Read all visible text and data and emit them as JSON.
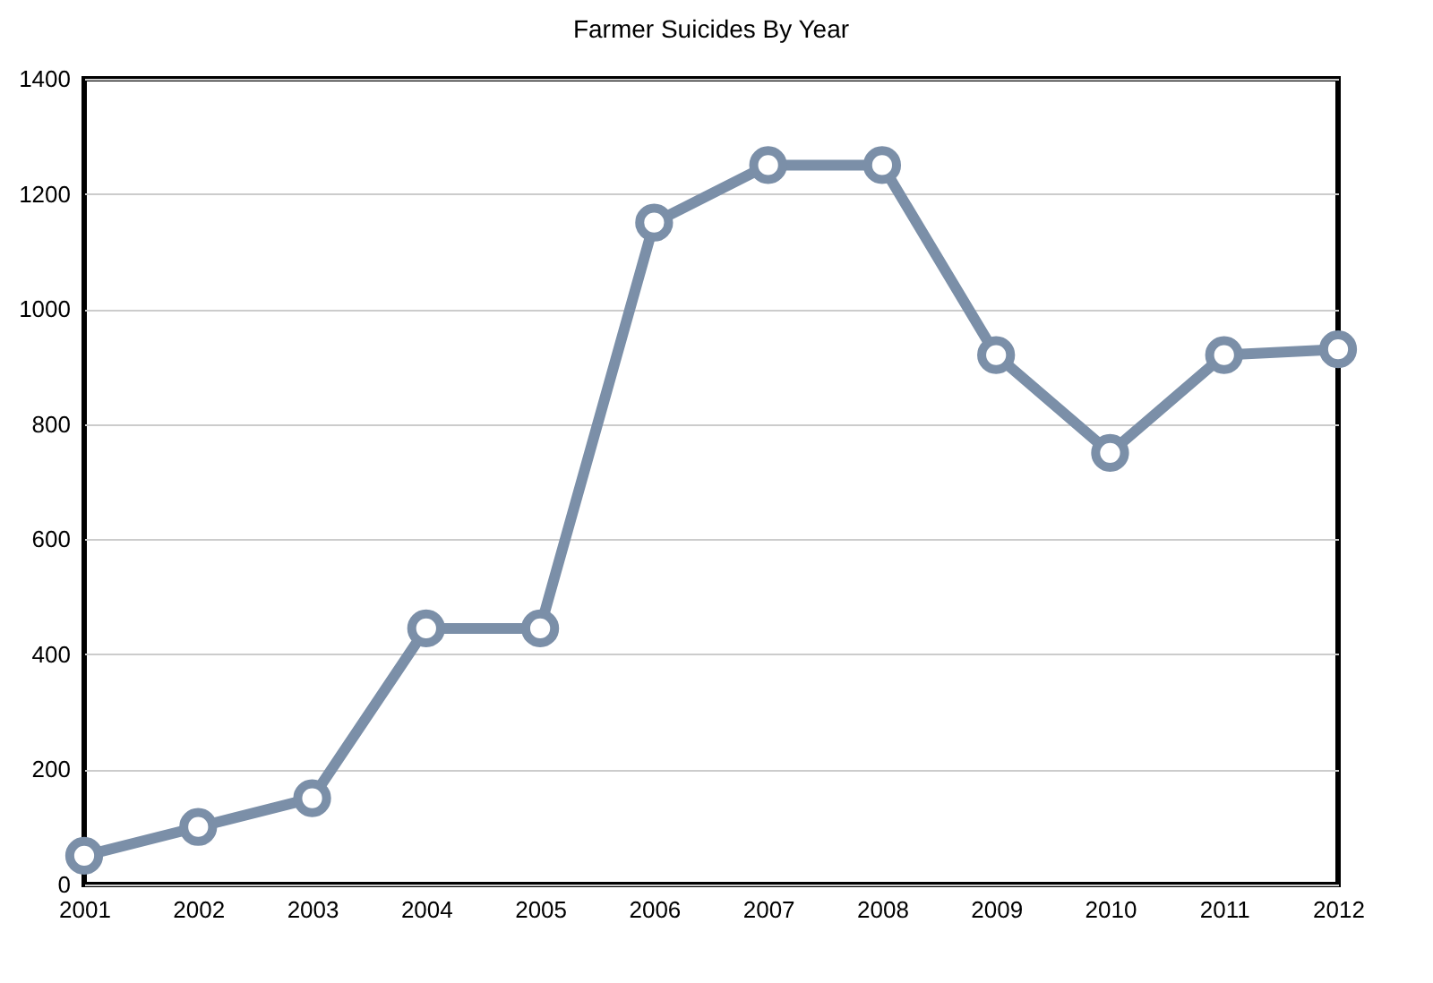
{
  "chart_data": {
    "type": "line",
    "title": "Farmer Suicides By Year",
    "categories": [
      "2001",
      "2002",
      "2003",
      "2004",
      "2005",
      "2006",
      "2007",
      "2008",
      "2009",
      "2010",
      "2011",
      "2012"
    ],
    "series": [
      {
        "color": "#7b8fa8",
        "values": [
          50,
          100,
          150,
          445,
          445,
          1150,
          1250,
          1250,
          920,
          750,
          920,
          930
        ]
      }
    ],
    "ylim": [
      0,
      1400
    ],
    "yticks": [
      0,
      200,
      400,
      600,
      800,
      1000,
      1200,
      1400
    ],
    "grid": "y",
    "marker": "circle",
    "line_style": "solid",
    "legend": false
  }
}
